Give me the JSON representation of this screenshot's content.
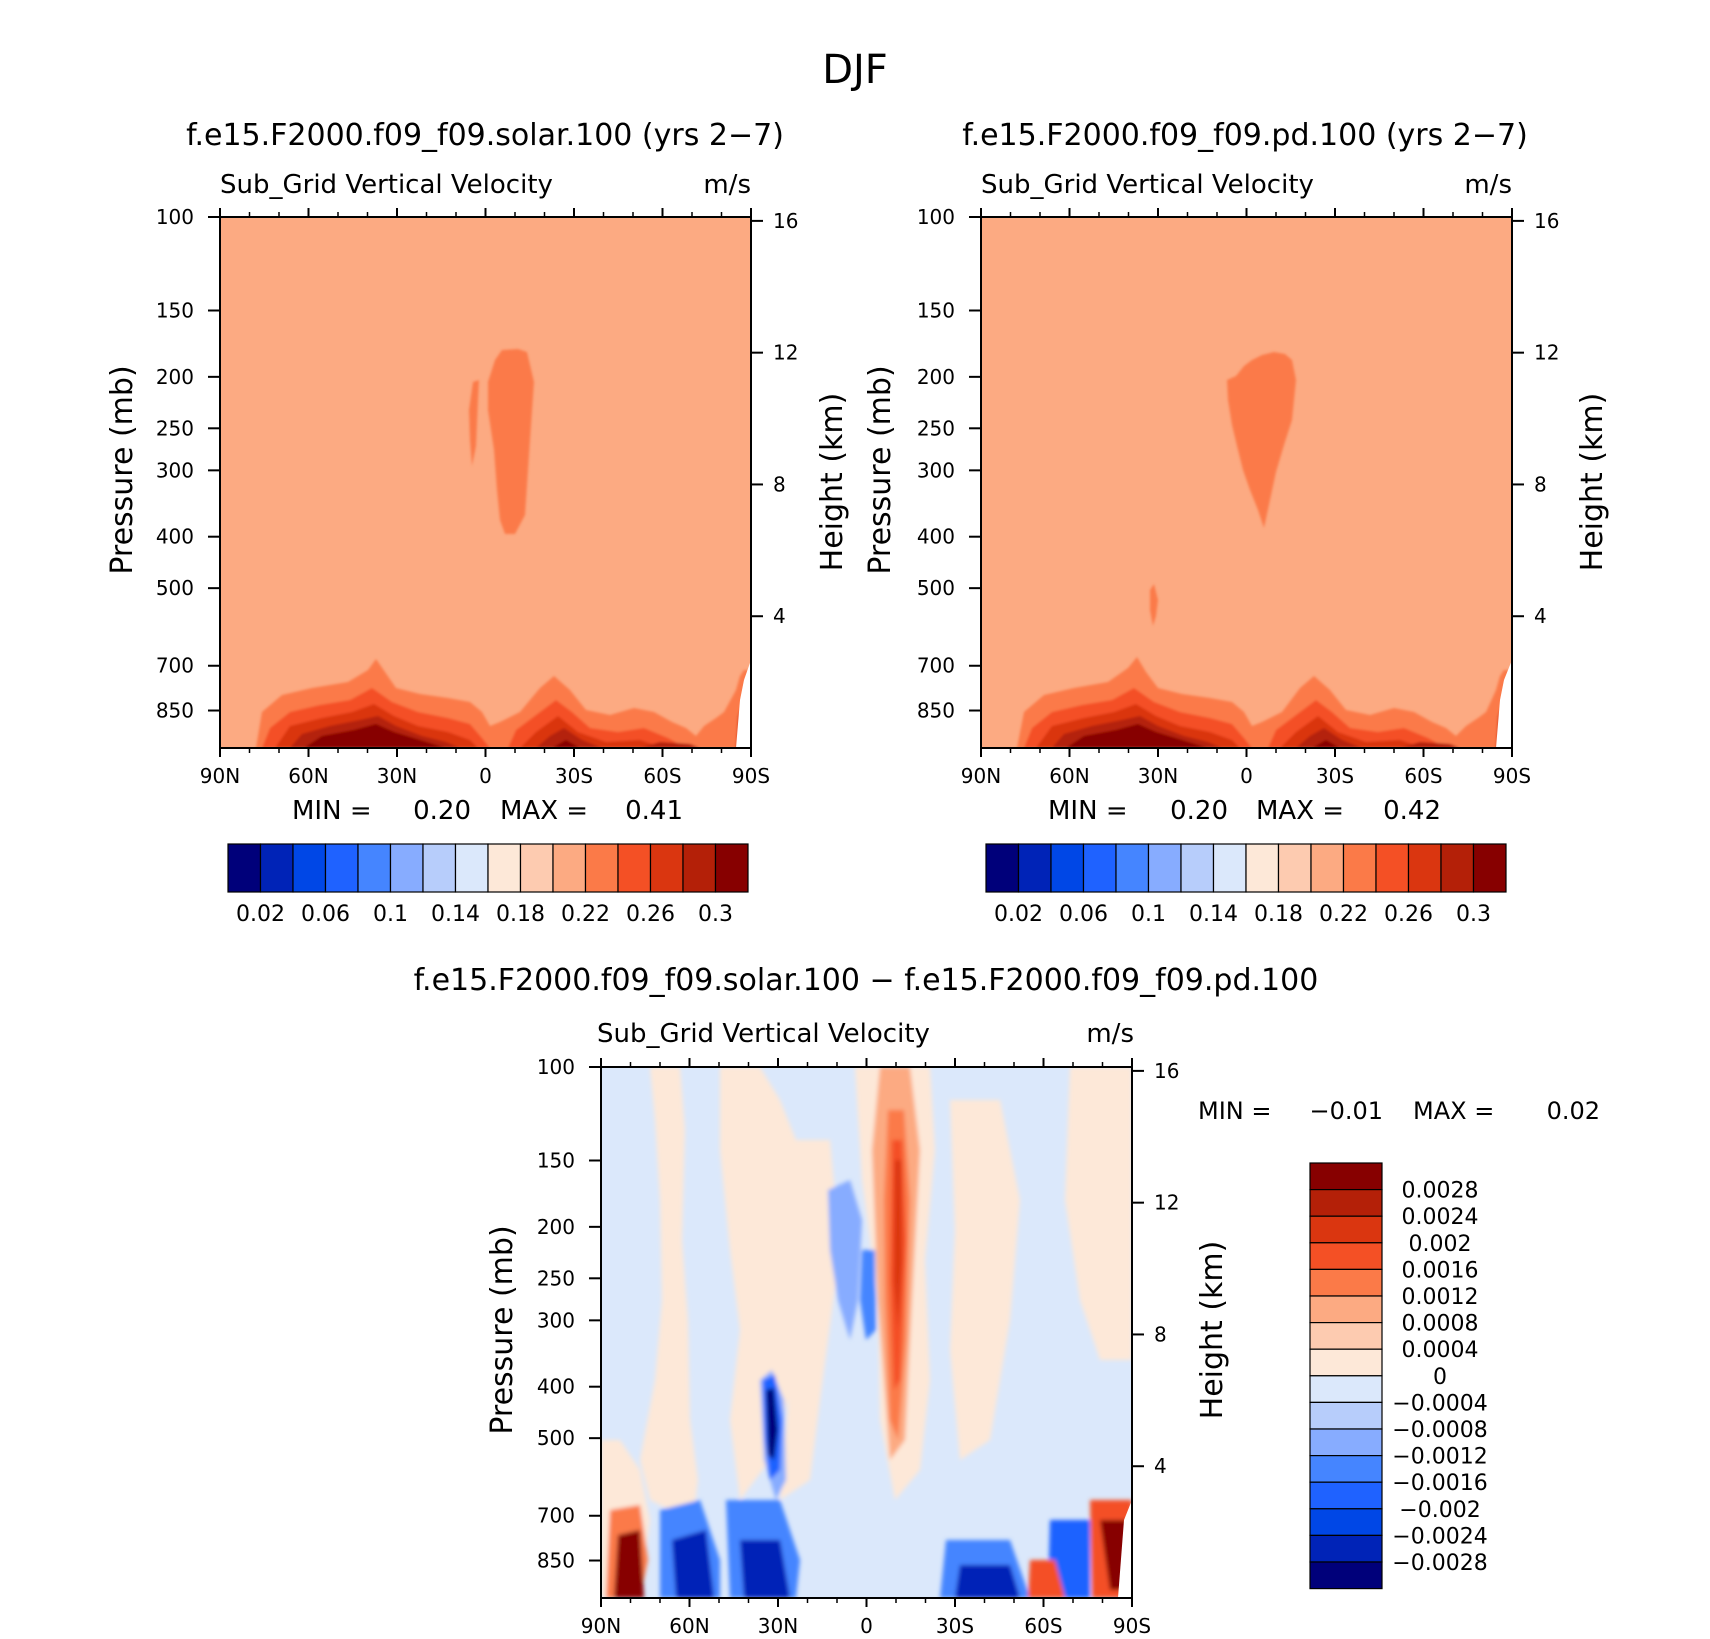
{
  "main_title": "DJF",
  "panels": [
    {
      "id": "solar",
      "case_title": "f.e15.F2000.f09_f09.solar.100 (yrs 2−7)",
      "variable": "Sub_Grid Vertical Velocity",
      "units": "m/s",
      "ylabel_left": "Pressure (mb)",
      "ylabel_right": "Height (km)",
      "stats": {
        "min_label": "MIN =",
        "min": "0.20",
        "max_label": "MAX =",
        "max": "0.41"
      }
    },
    {
      "id": "pd",
      "case_title": "f.e15.F2000.f09_f09.pd.100 (yrs 2−7)",
      "variable": "Sub_Grid Vertical Velocity",
      "units": "m/s",
      "ylabel_left": "Pressure (mb)",
      "ylabel_right": "Height (km)",
      "stats": {
        "min_label": "MIN =",
        "min": "0.20",
        "max_label": "MAX =",
        "max": "0.42"
      }
    },
    {
      "id": "diff",
      "case_title": "f.e15.F2000.f09_f09.solar.100 − f.e15.F2000.f09_f09.pd.100",
      "variable": "Sub_Grid Vertical Velocity",
      "units": "m/s",
      "ylabel_left": "Pressure (mb)",
      "ylabel_right": "Height (km)",
      "stats": {
        "min_label": "MIN =",
        "min": "−0.01",
        "max_label": "MAX =",
        "max": "0.02"
      }
    }
  ],
  "chart_data": [
    {
      "type": "heatmap",
      "title": "f.e15.F2000.f09_f09.solar.100 (yrs 2−7)",
      "subtitle": "Sub_Grid Vertical Velocity  m/s",
      "xlabel": "",
      "ylabel": "Pressure (mb)",
      "y2label": "Height (km)",
      "x_ticks": [
        "90N",
        "60N",
        "30N",
        "0",
        "30S",
        "60S",
        "90S"
      ],
      "x_range": [
        90,
        -90
      ],
      "y_ticks": [
        100,
        150,
        200,
        250,
        300,
        400,
        500,
        700,
        850
      ],
      "y_range": [
        100,
        1000
      ],
      "y_scale": "log",
      "y2_ticks": [
        16,
        12,
        8,
        4
      ],
      "background_level": 0.21,
      "features": [
        {
          "desc": "upper tropospheric maximum",
          "lat": [
            -2,
            -14
          ],
          "p": [
            180,
            390
          ],
          "value": 0.23
        },
        {
          "desc": "boundary layer maximum",
          "lat": [
            70,
            -75
          ],
          "p": [
            690,
            1000
          ],
          "value": 0.3
        }
      ],
      "min": 0.2,
      "max": 0.41
    },
    {
      "type": "heatmap",
      "title": "f.e15.F2000.f09_f09.pd.100 (yrs 2−7)",
      "subtitle": "Sub_Grid Vertical Velocity  m/s",
      "xlabel": "",
      "ylabel": "Pressure (mb)",
      "y2label": "Height (km)",
      "x_ticks": [
        "90N",
        "60N",
        "30N",
        "0",
        "30S",
        "60S",
        "90S"
      ],
      "x_range": [
        90,
        -90
      ],
      "y_ticks": [
        100,
        150,
        200,
        250,
        300,
        400,
        500,
        700,
        850
      ],
      "y_range": [
        100,
        1000
      ],
      "y_scale": "log",
      "y2_ticks": [
        16,
        12,
        8,
        4
      ],
      "background_level": 0.21,
      "features": [
        {
          "desc": "upper tropospheric maximum",
          "lat": [
            0,
            -17
          ],
          "p": [
            180,
            370
          ],
          "value": 0.23
        },
        {
          "desc": "boundary layer maximum",
          "lat": [
            70,
            -75
          ],
          "p": [
            690,
            1000
          ],
          "value": 0.3
        }
      ],
      "min": 0.2,
      "max": 0.42
    },
    {
      "type": "heatmap",
      "title": "f.e15.F2000.f09_f09.solar.100 − f.e15.F2000.f09_f09.pd.100",
      "subtitle": "Sub_Grid Vertical Velocity  m/s",
      "xlabel": "",
      "ylabel": "Pressure (mb)",
      "y2label": "Height (km)",
      "x_ticks": [
        "90N",
        "60N",
        "30N",
        "0",
        "30S",
        "60S",
        "90S"
      ],
      "x_range": [
        90,
        -90
      ],
      "y_ticks": [
        100,
        150,
        200,
        250,
        300,
        400,
        500,
        700,
        850
      ],
      "y_range": [
        100,
        1000
      ],
      "y_scale": "log",
      "y2_ticks": [
        16,
        12,
        8,
        4
      ],
      "features": [
        {
          "desc": "positive tropical column",
          "lat": [
            -5,
            -20
          ],
          "value": 0.002
        },
        {
          "desc": "negative column north of equator",
          "lat": [
            10,
            -2
          ],
          "value": -0.0012
        },
        {
          "desc": "negative near 30N mid-troposphere",
          "lat": [
            35,
            28
          ],
          "value": -0.0028
        }
      ],
      "min": -0.01,
      "max": 0.02
    }
  ],
  "colorbar_seq": {
    "labels": [
      "0.02",
      "0.06",
      "0.1",
      "0.14",
      "0.18",
      "0.22",
      "0.26",
      "0.3"
    ],
    "colors": [
      "#00007a",
      "#0023b7",
      "#0047e6",
      "#1f62ff",
      "#4585ff",
      "#87acff",
      "#b7cdfb",
      "#dbe8fb",
      "#fde8d8",
      "#fdcbb0",
      "#fcaa82",
      "#fb7a48",
      "#f45025",
      "#da3610",
      "#b42008",
      "#870000"
    ]
  },
  "colorbar_diff": {
    "labels": [
      "0.0028",
      "0.0024",
      "0.002",
      "0.0016",
      "0.0012",
      "0.0008",
      "0.0004",
      "0",
      "−0.0004",
      "−0.0008",
      "−0.0012",
      "−0.0016",
      "−0.002",
      "−0.0024",
      "−0.0028"
    ],
    "colors": [
      "#870000",
      "#b42008",
      "#da3610",
      "#f45025",
      "#fb7a48",
      "#fcaa82",
      "#fdcbb0",
      "#fde8d8",
      "#dbe8fb",
      "#b7cdfb",
      "#87acff",
      "#4585ff",
      "#1f62ff",
      "#0047e6",
      "#0023b7",
      "#00007a"
    ]
  }
}
